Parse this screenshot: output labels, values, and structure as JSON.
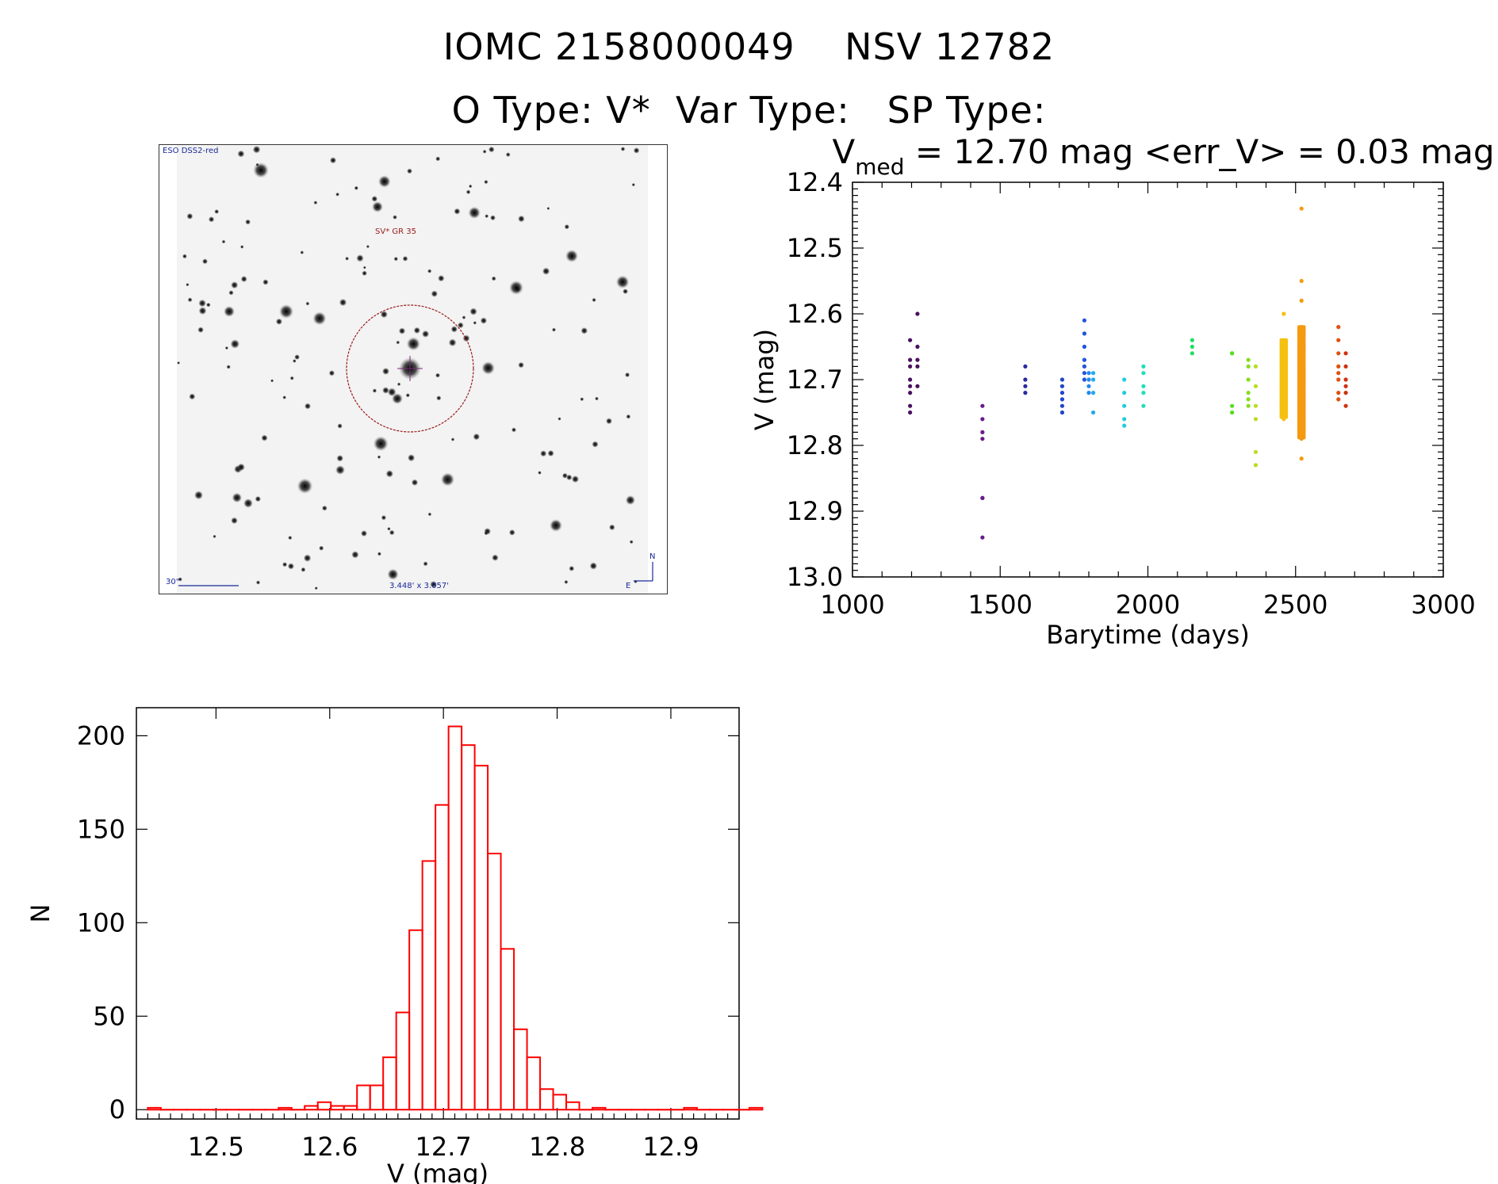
{
  "header": {
    "title": "IOMC 2158000049    NSV 12782",
    "subtitle": "O Type: V*  Var Type:   SP Type:"
  },
  "finder": {
    "survey_label": "ESO DSS2-red",
    "object_label": "SV* GR 35",
    "scale_label": "30\"",
    "fov_label": "3.448' x 3.057'",
    "north_label": "N",
    "east_label": "E"
  },
  "colors": {
    "finder_annot": "#9b1b1b",
    "finder_info": "#1a2a9a",
    "histogram": "#ff0000"
  },
  "chart_data": [
    {
      "type": "scatter",
      "title": "V_med = 12.70 mag <err_V> = 0.03 mag",
      "title_main": "V",
      "title_sub": "med",
      "title_rest": " = 12.70 mag <err_V> = 0.03 mag",
      "xlabel": "Barytime (days)",
      "ylabel": "V (mag)",
      "xlim": [
        1000,
        3000
      ],
      "ylim": [
        13.0,
        12.4
      ],
      "xticks": [
        1000,
        1500,
        2000,
        2500,
        3000
      ],
      "yticks": [
        12.4,
        12.5,
        12.6,
        12.7,
        12.8,
        12.9,
        13.0
      ],
      "xtick_labels": [
        "1000",
        "1500",
        "2000",
        "2500",
        "3000"
      ],
      "ytick_labels": [
        "12.4",
        "12.5",
        "12.6",
        "12.7",
        "12.8",
        "12.9",
        "13.0"
      ],
      "groups": [
        {
          "x": 1195,
          "color": "#4a1060",
          "y": [
            12.64,
            12.67,
            12.68,
            12.7,
            12.71,
            12.72,
            12.74,
            12.75
          ]
        },
        {
          "x": 1220,
          "color": "#4a1060",
          "y": [
            12.6,
            12.65,
            12.67,
            12.68,
            12.71
          ]
        },
        {
          "x": 1440,
          "color": "#6a1a8a",
          "y": [
            12.74,
            12.76,
            12.78,
            12.79,
            12.88,
            12.88,
            12.94
          ]
        },
        {
          "x": 1585,
          "color": "#2a2aa0",
          "y": [
            12.68,
            12.7,
            12.71,
            12.72
          ]
        },
        {
          "x": 1710,
          "color": "#2244cc",
          "y": [
            12.7,
            12.71,
            12.72,
            12.73,
            12.74,
            12.75
          ]
        },
        {
          "x": 1785,
          "color": "#2255dd",
          "y": [
            12.61,
            12.63,
            12.65,
            12.67,
            12.68,
            12.69,
            12.7
          ]
        },
        {
          "x": 1800,
          "color": "#2288ee",
          "y": [
            12.69,
            12.7,
            12.71,
            12.72
          ]
        },
        {
          "x": 1815,
          "color": "#22aaee",
          "y": [
            12.69,
            12.7,
            12.72,
            12.75
          ]
        },
        {
          "x": 1920,
          "color": "#22ccdd",
          "y": [
            12.7,
            12.72,
            12.74,
            12.76,
            12.77
          ]
        },
        {
          "x": 1985,
          "color": "#22ddbb",
          "y": [
            12.68,
            12.69,
            12.71,
            12.72,
            12.74
          ]
        },
        {
          "x": 2150,
          "color": "#22dd66",
          "y": [
            12.64,
            12.65,
            12.66
          ]
        },
        {
          "x": 2285,
          "color": "#55dd22",
          "y": [
            12.66,
            12.66,
            12.74,
            12.75
          ]
        },
        {
          "x": 2340,
          "color": "#88dd22",
          "y": [
            12.67,
            12.68,
            12.7,
            12.72,
            12.73,
            12.74
          ]
        },
        {
          "x": 2365,
          "color": "#bbdd22",
          "y": [
            12.68,
            12.71,
            12.74,
            12.76,
            12.81,
            12.83
          ]
        },
        {
          "x": 2460,
          "color": "#f5c010",
          "y": [
            12.6,
            12.64,
            12.66,
            12.68,
            12.69,
            12.7,
            12.71,
            12.72,
            12.73,
            12.74,
            12.75,
            12.76
          ]
        },
        {
          "x": 2520,
          "color": "#f59a10",
          "y": [
            12.44,
            12.55,
            12.58,
            12.62,
            12.65,
            12.67,
            12.68,
            12.69,
            12.7,
            12.71,
            12.72,
            12.73,
            12.75,
            12.77,
            12.79,
            12.82
          ]
        },
        {
          "x": 2645,
          "color": "#e05010",
          "y": [
            12.62,
            12.64,
            12.66,
            12.68,
            12.69,
            12.7,
            12.72,
            12.73
          ]
        },
        {
          "x": 2670,
          "color": "#d03010",
          "y": [
            12.66,
            12.68,
            12.7,
            12.71,
            12.72,
            12.74
          ]
        }
      ]
    },
    {
      "type": "bar",
      "title": "",
      "xlabel": "V (mag)",
      "ylabel": "N",
      "xlim": [
        12.43,
        12.96
      ],
      "ylim": [
        -5,
        215
      ],
      "xticks": [
        12.5,
        12.6,
        12.7,
        12.8,
        12.9
      ],
      "xtick_labels": [
        "12.5",
        "12.6",
        "12.7",
        "12.8",
        "12.9"
      ],
      "yticks": [
        0,
        50,
        100,
        150,
        200
      ],
      "ytick_labels": [
        "0",
        "50",
        "100",
        "150",
        "200"
      ],
      "bin_start": 12.44,
      "bin_width": 0.0115,
      "values": [
        1,
        0,
        0,
        0,
        0,
        0,
        0,
        0,
        0,
        0,
        1,
        0,
        2,
        4,
        2,
        2,
        13,
        13,
        28,
        52,
        96,
        133,
        163,
        205,
        195,
        184,
        137,
        86,
        43,
        28,
        11,
        8,
        4,
        0,
        1,
        0,
        0,
        0,
        0,
        0,
        0,
        1,
        0,
        0,
        0,
        0,
        1
      ]
    }
  ]
}
